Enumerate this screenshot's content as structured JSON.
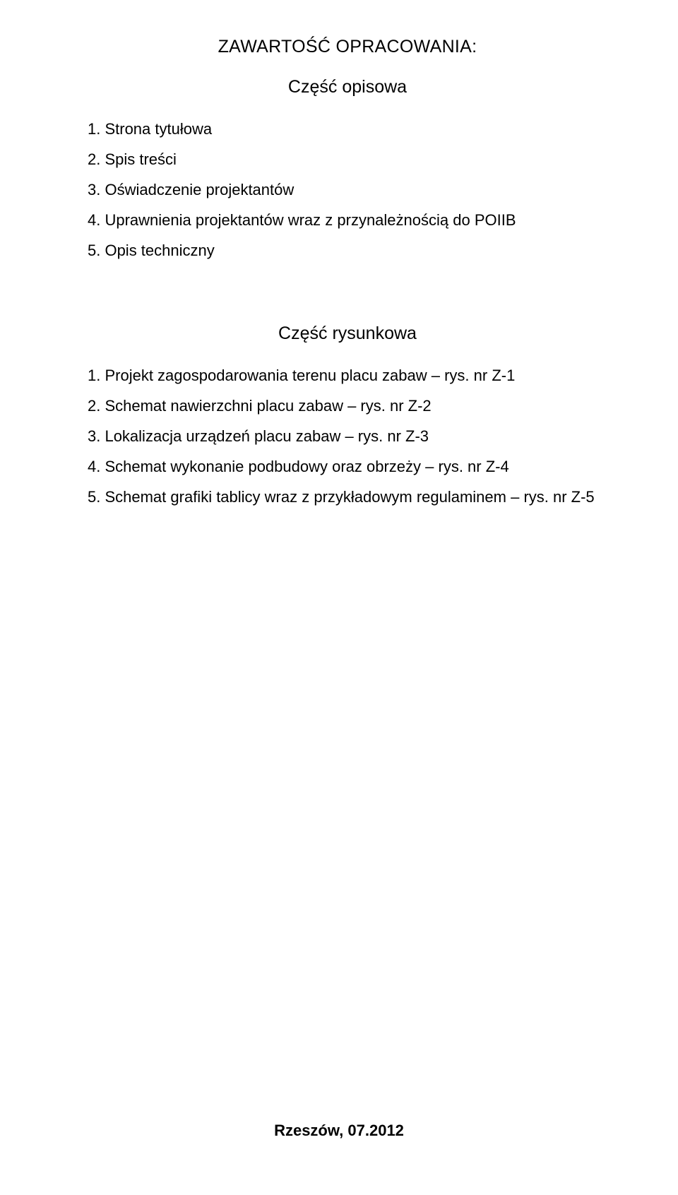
{
  "header_title": "ZAWARTOŚĆ OPRACOWANIA:",
  "section_1_title": "Część opisowa",
  "list_1": {
    "items": [
      "1. Strona tytułowa",
      "2. Spis treści",
      "3. Oświadczenie projektantów",
      "4. Uprawnienia projektantów wraz z przynależnością do POIIB",
      "5. Opis techniczny"
    ]
  },
  "section_2_title": "Część rysunkowa",
  "list_2": {
    "items": [
      "1. Projekt zagospodarowania terenu placu zabaw – rys. nr Z-1",
      "2. Schemat nawierzchni placu zabaw – rys. nr Z-2",
      "3. Lokalizacja urządzeń placu zabaw – rys. nr Z-3",
      "4. Schemat wykonanie podbudowy oraz obrzeży – rys. nr Z-4",
      "5. Schemat grafiki tablicy wraz z przykładowym regulaminem – rys. nr Z-5"
    ]
  },
  "footer_text": "Rzeszów, 07.2012"
}
